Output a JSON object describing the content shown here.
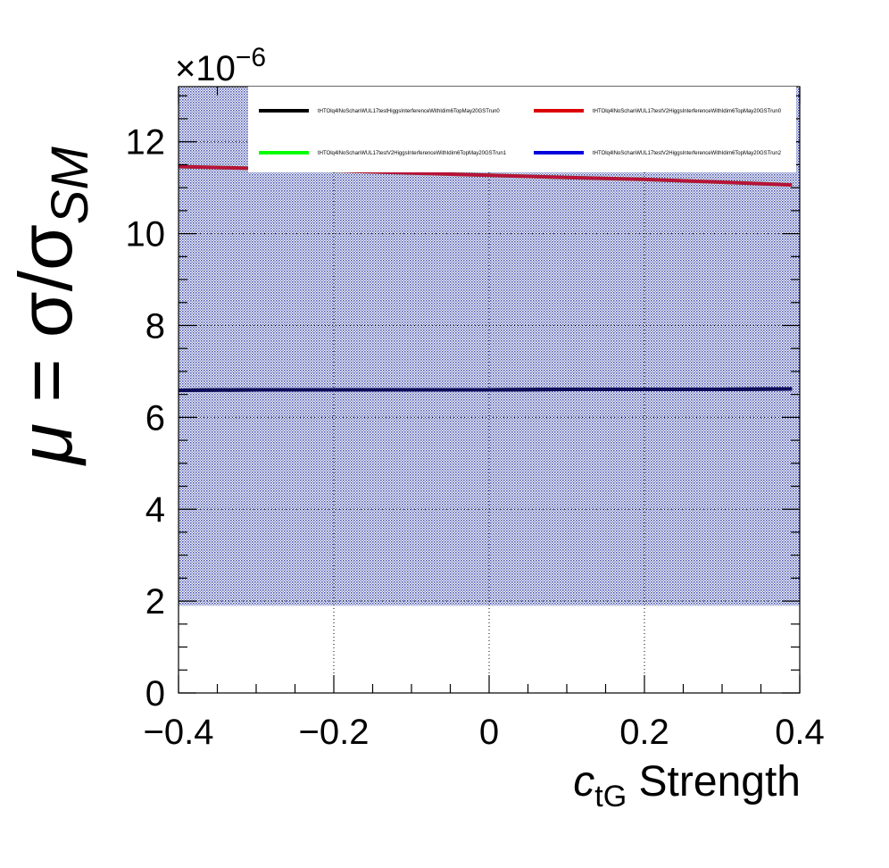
{
  "chart_data": {
    "type": "line",
    "title": "",
    "xlabel": {
      "main": "c",
      "sub": "tG",
      "rest": " Strength"
    },
    "ylabel": {
      "mu": "μ",
      "eq": " = σ/σ",
      "sub": "SM"
    },
    "exponent": {
      "times": "×10",
      "power": "−6"
    },
    "xlim": [
      -0.4,
      0.4
    ],
    "ylim": [
      0,
      13.2
    ],
    "xticks": [
      {
        "value": -0.4,
        "label": "−0.4"
      },
      {
        "value": -0.2,
        "label": "−0.2"
      },
      {
        "value": 0,
        "label": "0"
      },
      {
        "value": 0.2,
        "label": "0.2"
      },
      {
        "value": 0.4,
        "label": "0.4"
      }
    ],
    "yticks": [
      {
        "value": 0,
        "label": "0"
      },
      {
        "value": 2,
        "label": "2"
      },
      {
        "value": 4,
        "label": "4"
      },
      {
        "value": 6,
        "label": "6"
      },
      {
        "value": 8,
        "label": "8"
      },
      {
        "value": 10,
        "label": "10"
      },
      {
        "value": 12,
        "label": "12"
      }
    ],
    "grid": true,
    "legend_position": "top",
    "band": {
      "ylow": 1.9,
      "yhigh": 13.2,
      "color": "#4a55b0"
    },
    "series": [
      {
        "name": "tHTOlq4lNoSchanWUL17testHiggsInterferenceWithIdim6TopMay20GSTrun0",
        "color": "#000000",
        "x": [
          -0.4,
          -0.3,
          -0.2,
          -0.1,
          0,
          0.1,
          0.2,
          0.3,
          0.39
        ],
        "y": [
          6.59,
          6.6,
          6.6,
          6.6,
          6.6,
          6.61,
          6.61,
          6.61,
          6.62
        ]
      },
      {
        "name": "tHTOlq4lNoSchanWUL17testV2HiggsInterferenceWithIdim6TopMay20GSTrun0",
        "color": "#dd0000",
        "x": [
          -0.4,
          -0.3,
          -0.2,
          -0.1,
          0,
          0.1,
          0.2,
          0.3,
          0.39
        ],
        "y": [
          11.46,
          11.42,
          11.37,
          11.32,
          11.27,
          11.22,
          11.18,
          11.12,
          11.06
        ]
      },
      {
        "name": "tHTOlq4lNoSchanWUL17testV2HiggsInterferenceWithIdim6TopMay20GSTrun1",
        "color": "#00ff00",
        "x": [
          -0.4,
          -0.3,
          -0.2,
          -0.1,
          0,
          0.1,
          0.2,
          0.3,
          0.39
        ],
        "y": [
          11.46,
          11.42,
          11.37,
          11.32,
          11.27,
          11.22,
          11.18,
          11.12,
          11.06
        ]
      },
      {
        "name": "tHTOlq4lNoSchanWUL17testV2HiggsInterferenceWithIdim6TopMay20GSTrun2",
        "color": "#0000dd",
        "x": [
          -0.4,
          -0.3,
          -0.2,
          -0.1,
          0,
          0.1,
          0.2,
          0.3,
          0.39
        ],
        "y": [
          6.59,
          6.6,
          6.6,
          6.6,
          6.6,
          6.61,
          6.61,
          6.61,
          6.62
        ]
      }
    ]
  }
}
